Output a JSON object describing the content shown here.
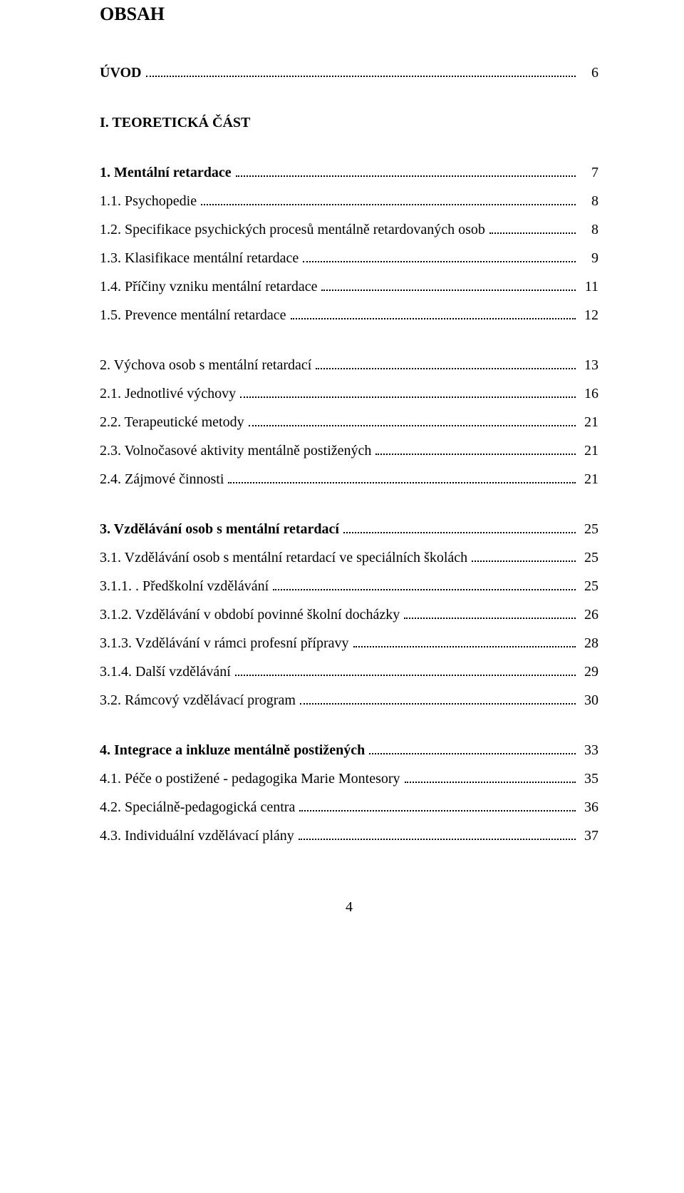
{
  "title": "OBSAH",
  "entries": [
    {
      "kind": "line",
      "bold": true,
      "label": "ÚVOD",
      "page": "6",
      "group_first": true
    },
    {
      "kind": "heading",
      "label": "I. TEORETICKÁ ČÁST"
    },
    {
      "kind": "line",
      "bold": true,
      "label": "1.  Mentální retardace",
      "page": "7",
      "group_first": true
    },
    {
      "kind": "line",
      "bold": false,
      "label": "1.1. Psychopedie",
      "page": "8"
    },
    {
      "kind": "line",
      "bold": false,
      "label": "1.2. Specifikace psychických procesů mentálně retardovaných osob",
      "page": "8"
    },
    {
      "kind": "line",
      "bold": false,
      "label": "1.3. Klasifikace mentální retardace",
      "page": "9"
    },
    {
      "kind": "line",
      "bold": false,
      "label": "1.4. Příčiny vzniku mentální retardace",
      "page": "11"
    },
    {
      "kind": "line",
      "bold": false,
      "label": "1.5. Prevence mentální retardace",
      "page": "12"
    },
    {
      "kind": "line",
      "bold": false,
      "label": "2.  Výchova osob s mentální retardací",
      "page": "13",
      "group_first": true
    },
    {
      "kind": "line",
      "bold": false,
      "label": "2.1. Jednotlivé výchovy",
      "page": "16"
    },
    {
      "kind": "line",
      "bold": false,
      "label": "2.2. Terapeutické metody",
      "page": "21"
    },
    {
      "kind": "line",
      "bold": false,
      "label": "2.3. Volnočasové aktivity mentálně postižených",
      "page": "21"
    },
    {
      "kind": "line",
      "bold": false,
      "label": "2.4. Zájmové činnosti",
      "page": "21"
    },
    {
      "kind": "line",
      "bold": true,
      "label": "3.   Vzdělávání osob s mentální retardací",
      "page": "25",
      "group_first": true
    },
    {
      "kind": "line",
      "bold": false,
      "label": "3.1. Vzdělávání osob s mentální retardací ve speciálních školách",
      "page": "25"
    },
    {
      "kind": "line",
      "bold": false,
      "label": "3.1.1. . Předškolní vzdělávání",
      "page": "25"
    },
    {
      "kind": "line",
      "bold": false,
      "label": "3.1.2.   Vzdělávání v období povinné školní docházky",
      "page": "26"
    },
    {
      "kind": "line",
      "bold": false,
      "label": "3.1.3.  Vzdělávání v rámci profesní přípravy",
      "page": "28"
    },
    {
      "kind": "line",
      "bold": false,
      "label": "3.1.4.   Další vzdělávání",
      "page": "29"
    },
    {
      "kind": "line",
      "bold": false,
      "label": "3.2. Rámcový vzdělávací program",
      "page": "30"
    },
    {
      "kind": "line",
      "bold": true,
      "label": "4.   Integrace a inkluze mentálně postižených",
      "page": "33",
      "group_first": true
    },
    {
      "kind": "line",
      "bold": false,
      "label": "4.1. Péče o postižené  - pedagogika Marie Montesory",
      "page": "35"
    },
    {
      "kind": "line",
      "bold": false,
      "label": "4.2. Speciálně-pedagogická centra",
      "page": "36"
    },
    {
      "kind": "line",
      "bold": false,
      "label": "4.3. Individuální vzdělávací plány",
      "page": "37"
    }
  ],
  "page_number": "4"
}
